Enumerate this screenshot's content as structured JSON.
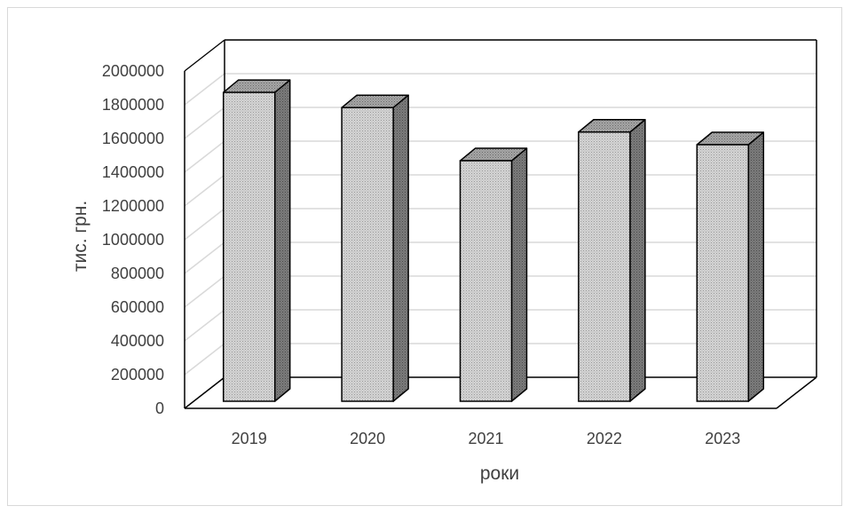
{
  "chart_data": {
    "type": "bar",
    "title": "",
    "xlabel": "роки",
    "ylabel": "тис. грн.",
    "categories": [
      "2019",
      "2020",
      "2021",
      "2022",
      "2023"
    ],
    "values": [
      1910000,
      1820000,
      1505000,
      1675000,
      1600000
    ],
    "yticks": [
      "0",
      "200000",
      "400000",
      "600000",
      "800000",
      "1000000",
      "1200000",
      "1400000",
      "1600000",
      "1800000",
      "2000000"
    ],
    "ylim": [
      0,
      2000000
    ],
    "grid": true,
    "legend": "none",
    "style": "3d-column",
    "colors": {
      "bar_front": "#cfcfcf",
      "bar_side": "#7a7a7a",
      "bar_top": "#9e9e9e",
      "grid": "#d9d9d9",
      "outline": "#000000"
    }
  }
}
